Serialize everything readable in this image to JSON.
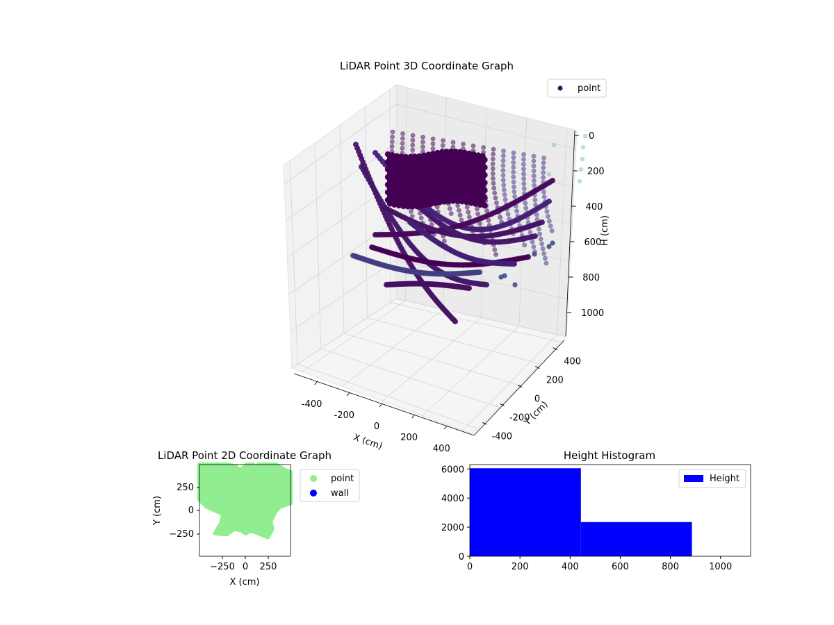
{
  "chart_data": [
    {
      "type": "scatter3d",
      "title": "LiDAR Point 3D Coordinate Graph",
      "xlabel": "X (cm)",
      "ylabel": "Y (cm)",
      "zlabel": "H (cm)",
      "xlim": [
        -450,
        450
      ],
      "ylim": [
        -450,
        450
      ],
      "zlim": [
        1100,
        0
      ],
      "xticks": [
        -400,
        -200,
        0,
        200,
        400
      ],
      "yticks": [
        -400,
        -200,
        0,
        200,
        400
      ],
      "zticks": [
        0,
        200,
        400,
        600,
        800,
        1000
      ],
      "legend": [
        "point"
      ],
      "legend_position": "top-right",
      "colormap": "viridis",
      "color_by": "H (cm)",
      "grid": true
    },
    {
      "type": "scatter",
      "title": "LiDAR Point 2D Coordinate Graph",
      "xlabel": "X (cm)",
      "ylabel": "Y (cm)",
      "xlim": [
        -500,
        500
      ],
      "ylim": [
        -500,
        500
      ],
      "xticks": [
        "−250",
        "0",
        "250"
      ],
      "yticks": [
        "250",
        "0",
        "−250"
      ],
      "series": [
        {
          "name": "point",
          "color": "#90ee90"
        },
        {
          "name": "wall",
          "color": "#0000ff"
        }
      ],
      "legend_position": "outside-right"
    },
    {
      "type": "histogram",
      "title": "Height Histogram",
      "bins": [
        {
          "start": 0,
          "end": 443,
          "count": 6050
        },
        {
          "start": 443,
          "end": 886,
          "count": 2350
        }
      ],
      "xlim": [
        0,
        1120
      ],
      "ylim": [
        0,
        6300
      ],
      "xticks": [
        0,
        200,
        400,
        600,
        800,
        1000
      ],
      "yticks": [
        0,
        2000,
        4000,
        6000
      ],
      "series": [
        {
          "name": "Height",
          "color": "#0000ff"
        }
      ],
      "legend_position": "top-right"
    }
  ]
}
